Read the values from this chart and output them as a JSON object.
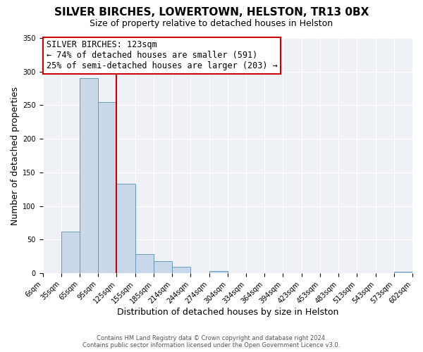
{
  "title": "SILVER BIRCHES, LOWERTOWN, HELSTON, TR13 0BX",
  "subtitle": "Size of property relative to detached houses in Helston",
  "xlabel": "Distribution of detached houses by size in Helston",
  "ylabel": "Number of detached properties",
  "bar_color": "#c8d8e8",
  "bar_edge_color": "#6699bb",
  "vline_color": "#cc0000",
  "vline_value": 4,
  "annotation_title": "SILVER BIRCHES: 123sqm",
  "annotation_line1": "← 74% of detached houses are smaller (591)",
  "annotation_line2": "25% of semi-detached houses are larger (203) →",
  "annotation_box_color": "#cc0000",
  "bin_counts": [
    0,
    62,
    290,
    255,
    133,
    29,
    18,
    10,
    0,
    3,
    0,
    0,
    0,
    0,
    0,
    0,
    0,
    0,
    0,
    2,
    0
  ],
  "tick_labels": [
    "6sqm",
    "35sqm",
    "65sqm",
    "95sqm",
    "125sqm",
    "155sqm",
    "185sqm",
    "214sqm",
    "244sqm",
    "274sqm",
    "304sqm",
    "334sqm",
    "364sqm",
    "394sqm",
    "423sqm",
    "453sqm",
    "483sqm",
    "513sqm",
    "543sqm",
    "573sqm",
    "602sqm"
  ],
  "ylim": [
    0,
    350
  ],
  "yticks": [
    0,
    50,
    100,
    150,
    200,
    250,
    300,
    350
  ],
  "background_color": "#eef2f7",
  "grid_color": "#ffffff",
  "footer_line1": "Contains HM Land Registry data © Crown copyright and database right 2024.",
  "footer_line2": "Contains public sector information licensed under the Open Government Licence v3.0.",
  "title_fontsize": 11,
  "subtitle_fontsize": 9,
  "axis_label_fontsize": 9,
  "tick_fontsize": 7,
  "annotation_fontsize": 8.5,
  "footer_fontsize": 6
}
